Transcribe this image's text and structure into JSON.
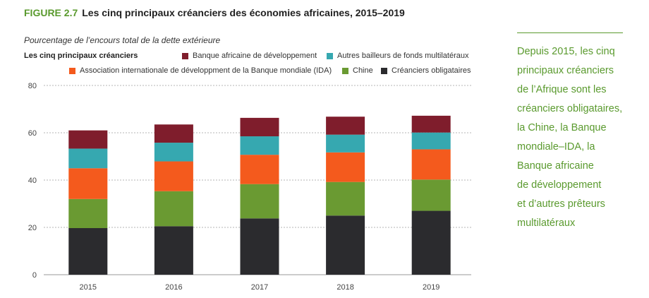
{
  "figure": {
    "number": "FIGURE 2.7",
    "title": "Les cinq principaux créanciers des économies africaines, 2015–2019",
    "subtitle": "Pourcentage de l’encours total de la dette extérieure"
  },
  "legend": {
    "heading": "Les cinq principaux créanciers",
    "items": [
      {
        "label": "Banque africaine de développement",
        "color": "#7f1d2c"
      },
      {
        "label": "Autres bailleurs de fonds multilatéraux",
        "color": "#36a8b0"
      },
      {
        "label": "Association internationale de développment de la Banque mondiale (IDA)",
        "color": "#f45a1d"
      },
      {
        "label": "Chine",
        "color": "#6a9a32"
      },
      {
        "label": "Créanciers obligataires",
        "color": "#2b2b2e"
      }
    ]
  },
  "chart_data": {
    "type": "bar",
    "stacked": true,
    "categories": [
      "2015",
      "2016",
      "2017",
      "2018",
      "2019"
    ],
    "y_ticks": [
      "0",
      "20",
      "40",
      "60",
      "80"
    ],
    "ylim": [
      0,
      80
    ],
    "grid": true,
    "legend_position": "top",
    "series": [
      {
        "name": "Créanciers obligataires",
        "color": "#2b2b2e",
        "values": [
          19.7,
          20.5,
          23.8,
          25.0,
          27.0
        ]
      },
      {
        "name": "Chine",
        "color": "#6a9a32",
        "values": [
          12.3,
          14.8,
          14.5,
          14.2,
          13.2
        ]
      },
      {
        "name": "Association internationale de développment de la Banque mondiale (IDA)",
        "color": "#f45a1d",
        "values": [
          13.0,
          12.6,
          12.4,
          12.5,
          12.8
        ]
      },
      {
        "name": "Autres bailleurs de fonds multilatéraux",
        "color": "#36a8b0",
        "values": [
          8.3,
          7.9,
          7.8,
          7.5,
          7.1
        ]
      },
      {
        "name": "Banque africaine de développement",
        "color": "#7f1d2c",
        "values": [
          7.7,
          7.7,
          7.8,
          7.6,
          7.1
        ]
      }
    ]
  },
  "sidebar": {
    "lines": [
      "Depuis 2015, les cinq",
      "principaux créanciers",
      "de l’Afrique sont les",
      "créanciers obligataires,",
      "la Chine, la Banque",
      "mondiale–IDA, la",
      "Banque africaine",
      "de développement",
      "et d’autres prêteurs",
      "multilatéraux"
    ]
  }
}
